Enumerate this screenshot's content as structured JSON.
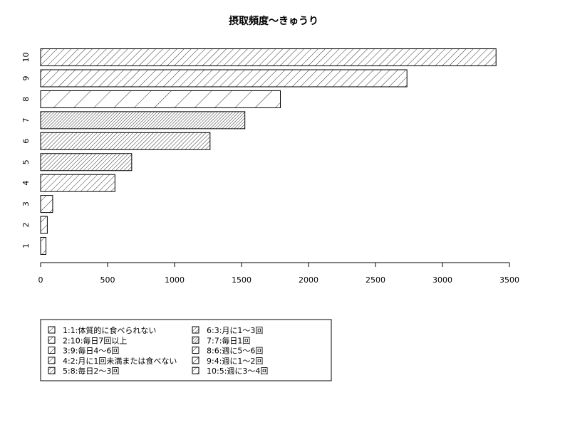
{
  "chart_data": {
    "type": "bar",
    "orientation": "horizontal",
    "title": "摂取頻度〜きゅうり",
    "xlabel": "",
    "ylabel": "",
    "categories": [
      "1",
      "2",
      "3",
      "4",
      "5",
      "6",
      "7",
      "8",
      "9",
      "10"
    ],
    "values": [
      40,
      50,
      90,
      555,
      680,
      1265,
      1525,
      1790,
      2735,
      3400
    ],
    "xlim": [
      0,
      3500
    ],
    "x_ticks": [
      0,
      500,
      1000,
      1500,
      2000,
      2500,
      3000,
      3500
    ],
    "grid": false,
    "legend_position": "bottom-left",
    "legend": [
      "1:1:体質的に食べられない",
      "2:10:毎日7回以上",
      "3:9:毎日4〜6回",
      "4:2:月に1回未満または食べない",
      "5:8:毎日2〜3回",
      "6:3:月に1〜3回",
      "7:7:毎日1回",
      "8:6:週に5〜6回",
      "9:4:週に1〜2回",
      "10:5:週に3〜4回"
    ],
    "colors": {
      "stroke": "#000000",
      "background": "#ffffff"
    }
  }
}
